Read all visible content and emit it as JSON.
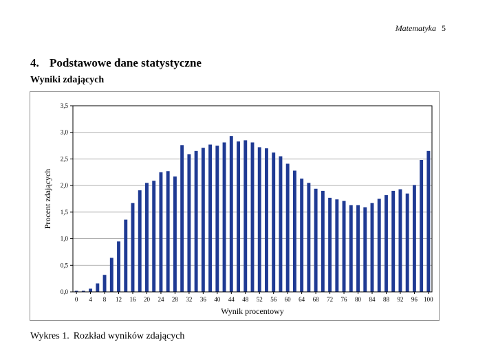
{
  "running_head": {
    "subject": "Matematyka",
    "page_number": "5"
  },
  "section": {
    "number": "4.",
    "title": "Podstawowe dane statystyczne"
  },
  "subheading": "Wyniki zdających",
  "caption": {
    "label": "Wykres 1.",
    "text": "Rozkład wyników zdających"
  },
  "chart_data": {
    "type": "bar",
    "title": "",
    "xlabel": "Wynik procentowy",
    "ylabel": "Procent zdających",
    "ylim": [
      0,
      3.5
    ],
    "yticks": [
      "0,0",
      "0,5",
      "1,0",
      "1,5",
      "2,0",
      "2,5",
      "3,0",
      "3,5"
    ],
    "grid": true,
    "bar_color": "#1f3a93",
    "categories": [
      "0",
      "2",
      "4",
      "6",
      "8",
      "10",
      "12",
      "14",
      "16",
      "18",
      "20",
      "22",
      "24",
      "26",
      "28",
      "30",
      "32",
      "34",
      "36",
      "38",
      "40",
      "42",
      "44",
      "46",
      "48",
      "50",
      "52",
      "54",
      "56",
      "58",
      "60",
      "62",
      "64",
      "66",
      "68",
      "70",
      "72",
      "74",
      "76",
      "78",
      "80",
      "82",
      "84",
      "86",
      "88",
      "90",
      "92",
      "94",
      "96",
      "98",
      "100"
    ],
    "xtick_labels": [
      "0",
      "4",
      "8",
      "12",
      "16",
      "20",
      "24",
      "28",
      "32",
      "36",
      "40",
      "44",
      "48",
      "52",
      "56",
      "60",
      "64",
      "68",
      "72",
      "76",
      "80",
      "84",
      "88",
      "92",
      "96",
      "100"
    ],
    "values": [
      0.02,
      0.02,
      0.06,
      0.16,
      0.32,
      0.64,
      0.95,
      1.36,
      1.67,
      1.91,
      2.05,
      2.09,
      2.25,
      2.27,
      2.17,
      2.76,
      2.59,
      2.65,
      2.71,
      2.77,
      2.75,
      2.81,
      2.93,
      2.83,
      2.85,
      2.81,
      2.72,
      2.7,
      2.62,
      2.55,
      2.41,
      2.28,
      2.13,
      2.05,
      1.94,
      1.9,
      1.77,
      1.74,
      1.71,
      1.63,
      1.63,
      1.59,
      1.67,
      1.75,
      1.82,
      1.9,
      1.93,
      1.85,
      2.01,
      2.48,
      2.65
    ]
  }
}
